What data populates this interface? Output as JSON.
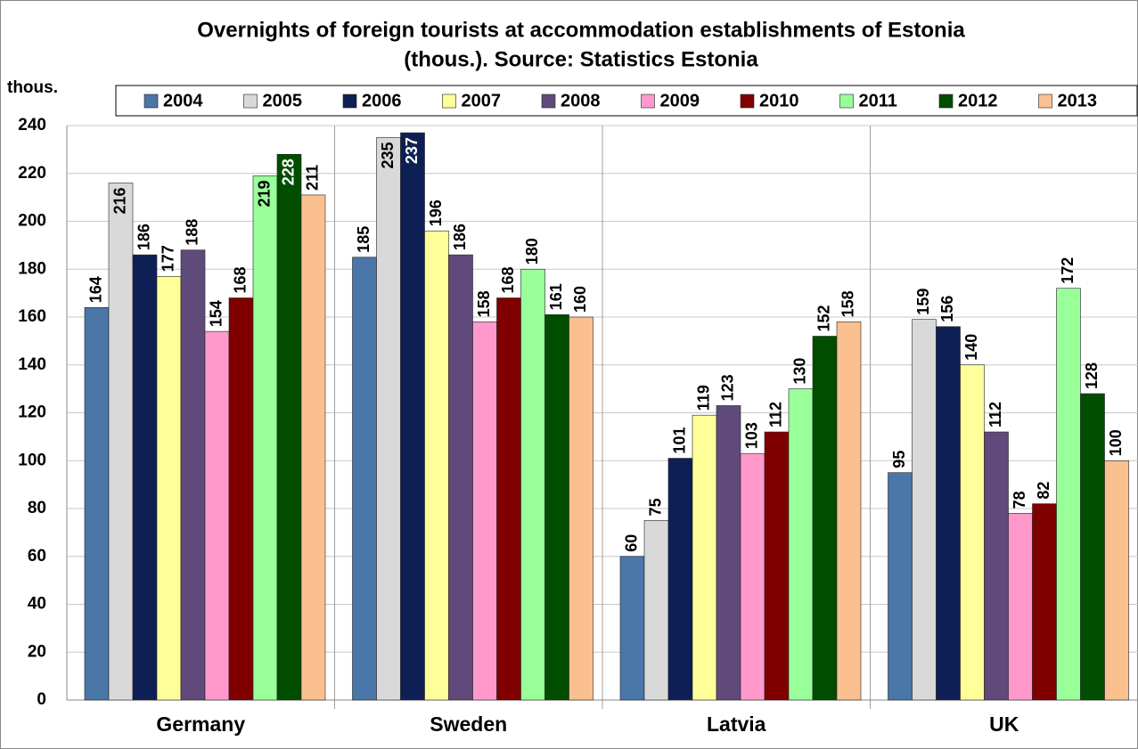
{
  "chart_data": {
    "type": "bar",
    "title": "Overnights of foreign tourists at accommodation establishments of Estonia",
    "subtitle": "(thous.). Source: Statistics Estonia",
    "y_label": "thous.",
    "categories": [
      "Germany",
      "Sweden",
      "Latvia",
      "UK"
    ],
    "series": [
      {
        "name": "2004",
        "color": "#4a76a8",
        "values": [
          164,
          185,
          60,
          95
        ]
      },
      {
        "name": "2005",
        "color": "#d9d9d9",
        "values": [
          216,
          235,
          75,
          159
        ]
      },
      {
        "name": "2006",
        "color": "#0d1f54",
        "values": [
          186,
          237,
          101,
          156
        ]
      },
      {
        "name": "2007",
        "color": "#ffff99",
        "values": [
          177,
          196,
          119,
          140
        ]
      },
      {
        "name": "2008",
        "color": "#604a7b",
        "values": [
          188,
          186,
          123,
          112
        ]
      },
      {
        "name": "2009",
        "color": "#ff99cc",
        "values": [
          154,
          158,
          103,
          78
        ]
      },
      {
        "name": "2010",
        "color": "#800000",
        "values": [
          168,
          168,
          112,
          82
        ]
      },
      {
        "name": "2011",
        "color": "#99ff99",
        "values": [
          219,
          180,
          130,
          172
        ]
      },
      {
        "name": "2012",
        "color": "#004d00",
        "values": [
          228,
          161,
          152,
          128
        ]
      },
      {
        "name": "2013",
        "color": "#fac090",
        "values": [
          211,
          160,
          158,
          100
        ]
      }
    ],
    "ylim": [
      0,
      240
    ],
    "yticks": [
      0,
      20,
      40,
      60,
      80,
      100,
      120,
      140,
      160,
      180,
      200,
      220,
      240
    ],
    "grid": true,
    "legend": "top"
  }
}
